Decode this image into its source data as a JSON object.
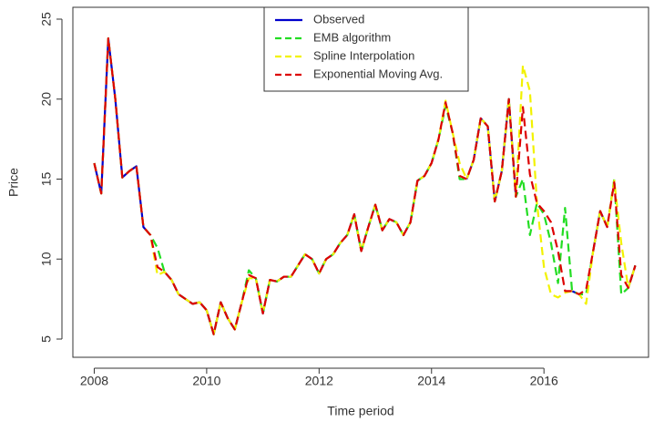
{
  "chart_data": {
    "type": "line",
    "x_label": "Time period",
    "y_label": "Price",
    "x": [
      2008,
      2008.125,
      2008.25,
      2008.375,
      2008.5,
      2008.625,
      2008.75,
      2008.875,
      2009,
      2009.125,
      2009.25,
      2009.375,
      2009.5,
      2009.625,
      2009.75,
      2009.875,
      2010,
      2010.125,
      2010.25,
      2010.375,
      2010.5,
      2010.625,
      2010.75,
      2010.875,
      2011,
      2011.125,
      2011.25,
      2011.375,
      2011.5,
      2011.625,
      2011.75,
      2011.875,
      2012,
      2012.125,
      2012.25,
      2012.375,
      2012.5,
      2012.625,
      2012.75,
      2012.875,
      2013,
      2013.125,
      2013.25,
      2013.375,
      2013.5,
      2013.625,
      2013.75,
      2013.875,
      2014,
      2014.125,
      2014.25,
      2014.375,
      2014.5,
      2014.625,
      2014.75,
      2014.875,
      2015,
      2015.125,
      2015.25,
      2015.375,
      2015.5,
      2015.625,
      2015.75,
      2015.875,
      2016,
      2016.125,
      2016.25,
      2016.375,
      2016.5,
      2016.625,
      2016.75,
      2016.875,
      2017,
      2017.125,
      2017.25,
      2017.375,
      2017.5,
      2017.625
    ],
    "series": [
      {
        "name": "Observed",
        "color": "#0000cc",
        "dashed": false,
        "values": [
          16,
          14.1,
          23.8,
          20,
          15.1,
          15.5,
          15.8,
          12,
          11.5,
          null,
          9.2,
          8.7,
          7.8,
          7.5,
          7.2,
          7.3,
          6.8,
          5.3,
          7.3,
          6.3,
          5.6,
          7.3,
          null,
          8.8,
          6.6,
          8.7,
          8.6,
          8.9,
          8.9,
          9.6,
          10.3,
          10.0,
          9.1,
          10.0,
          10.3,
          11.0,
          11.5,
          12.8,
          10.5,
          12.0,
          13.4,
          11.8,
          12.5,
          12.3,
          11.5,
          12.3,
          14.9,
          15.2,
          16.0,
          17.5,
          null,
          17.9,
          null,
          15.0,
          16.2,
          18.8,
          18.3,
          13.6,
          15.5,
          20.0,
          13.9,
          null,
          null,
          13.5,
          null,
          null,
          null,
          null,
          8.0,
          7.8,
          null,
          10.5,
          13.0,
          12.0,
          null,
          null,
          8.2,
          9.6
        ]
      },
      {
        "name": "EMB algorithm",
        "color": "#22dd22",
        "dashed": true,
        "values": [
          16,
          14.1,
          23.8,
          20,
          15.1,
          15.5,
          15.8,
          12,
          11.5,
          10.7,
          9.2,
          8.7,
          7.8,
          7.5,
          7.2,
          7.3,
          6.8,
          5.3,
          7.3,
          6.3,
          5.6,
          7.3,
          9.3,
          8.8,
          6.6,
          8.7,
          8.6,
          8.9,
          8.9,
          9.6,
          10.3,
          10.0,
          9.1,
          10.0,
          10.3,
          11.0,
          11.5,
          12.8,
          10.5,
          12.0,
          13.4,
          11.8,
          12.5,
          12.3,
          11.5,
          12.3,
          14.9,
          15.2,
          16.0,
          17.5,
          19.6,
          17.9,
          15.0,
          15.0,
          16.2,
          18.8,
          18.3,
          13.6,
          15.5,
          20.0,
          13.9,
          15.0,
          11.5,
          13.5,
          12.8,
          11.0,
          8.5,
          13.2,
          8.0,
          7.8,
          7.8,
          10.5,
          13.0,
          12.0,
          15.0,
          7.8,
          8.2,
          9.6
        ]
      },
      {
        "name": "Spline Interpolation",
        "color": "#f2f200",
        "dashed": true,
        "values": [
          16,
          14.1,
          23.8,
          20,
          15.1,
          15.5,
          15.8,
          12,
          11.5,
          9.0,
          9.2,
          8.7,
          7.8,
          7.5,
          7.2,
          7.3,
          6.8,
          5.3,
          7.3,
          6.3,
          5.6,
          7.3,
          8.8,
          8.8,
          6.6,
          8.7,
          8.6,
          8.9,
          8.9,
          9.6,
          10.3,
          10.0,
          9.1,
          10.0,
          10.3,
          11.0,
          11.5,
          12.8,
          10.5,
          12.0,
          13.4,
          11.8,
          12.5,
          12.3,
          11.5,
          12.3,
          14.9,
          15.2,
          16.0,
          17.5,
          19.9,
          17.9,
          16.0,
          15.0,
          16.2,
          18.8,
          18.3,
          13.6,
          15.5,
          20.0,
          13.9,
          22.1,
          20.5,
          13.5,
          9.5,
          7.8,
          7.6,
          7.9,
          8.0,
          7.8,
          7.2,
          10.5,
          13.0,
          12.0,
          14.9,
          11.0,
          8.2,
          9.6
        ]
      },
      {
        "name": "Exponential Moving Avg.",
        "color": "#dd0000",
        "dashed": true,
        "values": [
          16,
          14.1,
          23.8,
          20,
          15.1,
          15.5,
          15.8,
          12,
          11.5,
          9.5,
          9.2,
          8.7,
          7.8,
          7.5,
          7.2,
          7.3,
          6.8,
          5.3,
          7.3,
          6.3,
          5.6,
          7.3,
          9.0,
          8.8,
          6.6,
          8.7,
          8.6,
          8.9,
          8.9,
          9.6,
          10.3,
          10.0,
          9.1,
          10.0,
          10.3,
          11.0,
          11.5,
          12.8,
          10.5,
          12.0,
          13.4,
          11.8,
          12.5,
          12.3,
          11.5,
          12.3,
          14.9,
          15.2,
          16.0,
          17.5,
          19.8,
          17.9,
          15.2,
          15.0,
          16.2,
          18.8,
          18.3,
          13.6,
          15.5,
          20.0,
          13.9,
          19.5,
          15.3,
          13.5,
          13.0,
          12.3,
          10.5,
          8.0,
          8.0,
          7.8,
          8.1,
          10.5,
          13.0,
          12.0,
          14.8,
          9.0,
          8.2,
          9.6
        ]
      }
    ],
    "xlim": [
      2007.62,
      2017.86
    ],
    "ylim": [
      3.86,
      25.74
    ],
    "xticks": [
      2008,
      2010,
      2012,
      2014,
      2016
    ],
    "yticks": [
      5,
      10,
      15,
      20,
      25
    ],
    "legend": "top"
  }
}
